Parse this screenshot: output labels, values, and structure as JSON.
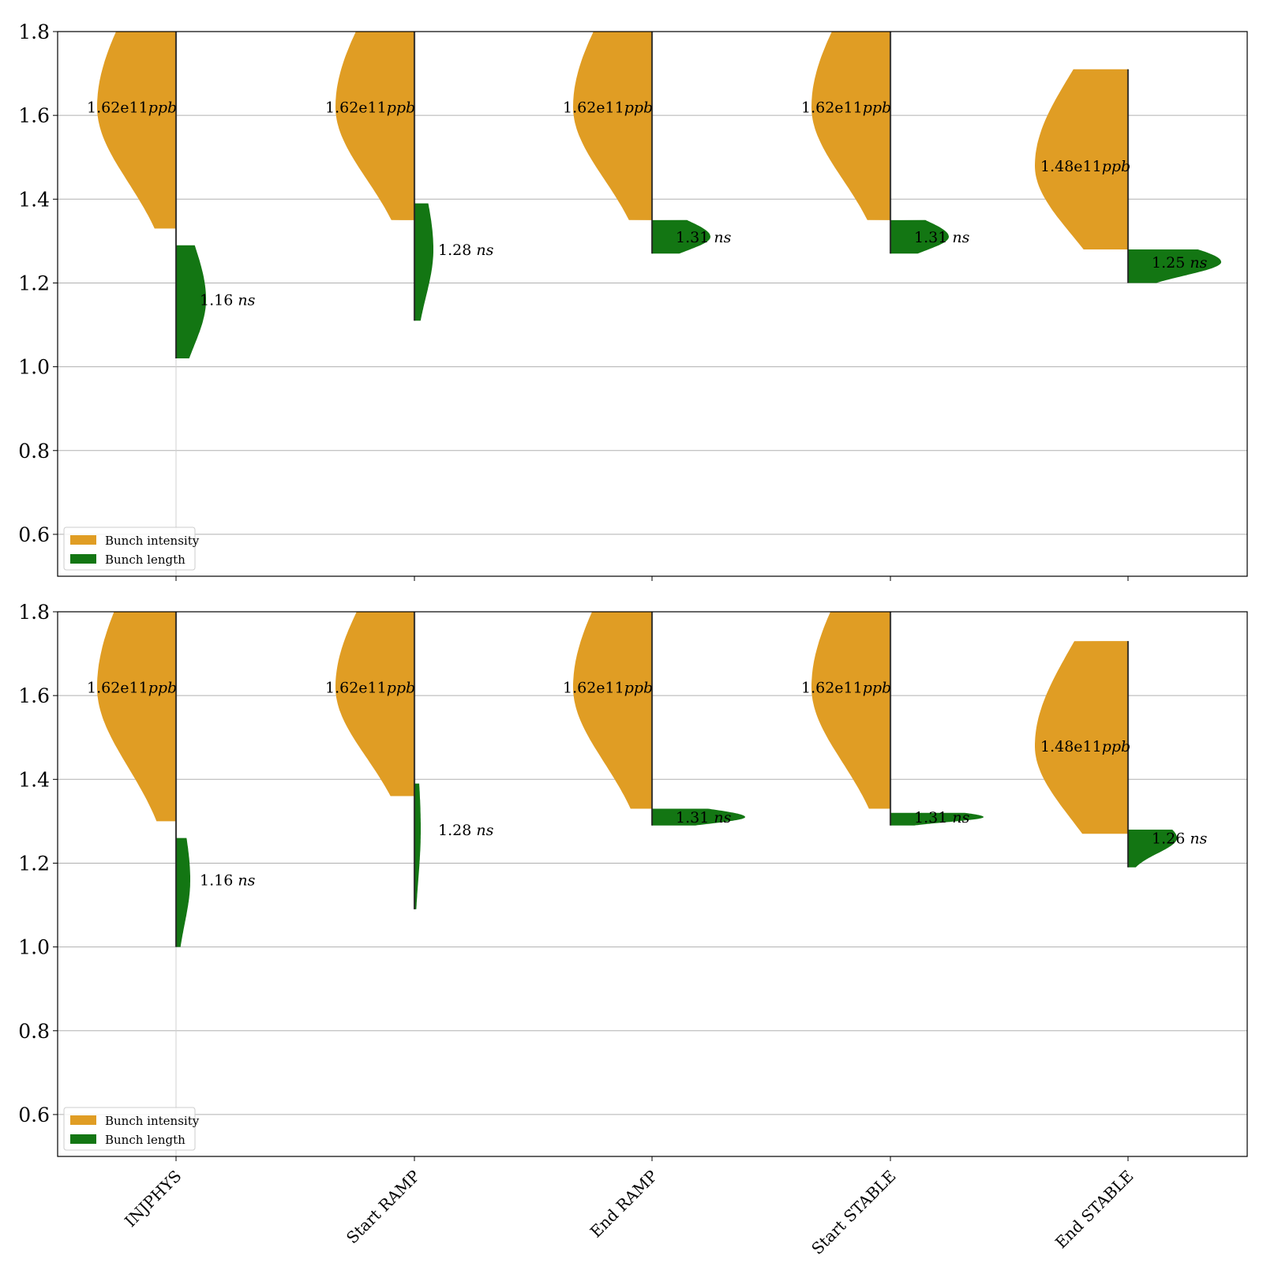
{
  "colors": {
    "intensity": "#E09D24",
    "length": "#137613",
    "grid": "#B0B0B0",
    "axis": "#000000"
  },
  "chart_data": [
    {
      "type": "violin",
      "panel": "top",
      "title": "",
      "xlabel": "",
      "ylabel": "",
      "categories": [
        "INJPHYS",
        "Start RAMP",
        "End RAMP",
        "Start STABLE",
        "End STABLE"
      ],
      "show_x_tick_labels": false,
      "ylim": [
        0.5,
        1.8
      ],
      "yticks": [
        "0.6",
        "0.8",
        "1.0",
        "1.2",
        "1.4",
        "1.6",
        "1.8"
      ],
      "grid": "horizontal",
      "legend": {
        "placement": "lower-left",
        "entries": [
          "Bunch intensity",
          "Bunch length"
        ]
      },
      "series": [
        {
          "name": "Bunch intensity",
          "side": "left",
          "values": [
            1.62,
            1.62,
            1.62,
            1.62,
            1.48
          ],
          "labels": [
            [
              "1.62e11",
              "ppb"
            ],
            [
              "1.62e11",
              "ppb"
            ],
            [
              "1.62e11",
              "ppb"
            ],
            [
              "1.62e11",
              "ppb"
            ],
            [
              "1.48e11",
              "ppb"
            ]
          ],
          "y_min": [
            1.33,
            1.35,
            1.35,
            1.35,
            1.28
          ],
          "y_max": [
            1.8,
            1.8,
            1.8,
            1.8,
            1.71
          ]
        },
        {
          "name": "Bunch length",
          "side": "right",
          "values": [
            1.16,
            1.28,
            1.31,
            1.31,
            1.25
          ],
          "labels": [
            [
              "1.16",
              "ns"
            ],
            [
              "1.28",
              "ns"
            ],
            [
              "1.31",
              "ns"
            ],
            [
              "1.31",
              "ns"
            ],
            [
              "1.25",
              "ns"
            ]
          ],
          "y_min": [
            1.02,
            1.11,
            1.27,
            1.27,
            1.2
          ],
          "y_max": [
            1.29,
            1.39,
            1.35,
            1.35,
            1.28
          ]
        }
      ]
    },
    {
      "type": "violin",
      "panel": "bottom",
      "title": "",
      "xlabel": "",
      "ylabel": "",
      "categories": [
        "INJPHYS",
        "Start RAMP",
        "End RAMP",
        "Start STABLE",
        "End STABLE"
      ],
      "show_x_tick_labels": true,
      "ylim": [
        0.5,
        1.8
      ],
      "yticks": [
        "0.6",
        "0.8",
        "1.0",
        "1.2",
        "1.4",
        "1.6",
        "1.8"
      ],
      "grid": "horizontal",
      "legend": {
        "placement": "lower-left",
        "entries": [
          "Bunch intensity",
          "Bunch length"
        ]
      },
      "series": [
        {
          "name": "Bunch intensity",
          "side": "left",
          "values": [
            1.62,
            1.62,
            1.62,
            1.62,
            1.48
          ],
          "labels": [
            [
              "1.62e11",
              "ppb"
            ],
            [
              "1.62e11",
              "ppb"
            ],
            [
              "1.62e11",
              "ppb"
            ],
            [
              "1.62e11",
              "ppb"
            ],
            [
              "1.48e11",
              "ppb"
            ]
          ],
          "y_min": [
            1.3,
            1.36,
            1.33,
            1.33,
            1.27
          ],
          "y_max": [
            1.8,
            1.8,
            1.8,
            1.8,
            1.73
          ]
        },
        {
          "name": "Bunch length",
          "side": "right",
          "values": [
            1.16,
            1.28,
            1.31,
            1.31,
            1.26
          ],
          "labels": [
            [
              "1.16",
              "ns"
            ],
            [
              "1.28",
              "ns"
            ],
            [
              "1.31",
              "ns"
            ],
            [
              "1.31",
              "ns"
            ],
            [
              "1.26",
              "ns"
            ]
          ],
          "y_min": [
            1.0,
            1.09,
            1.29,
            1.29,
            1.19
          ],
          "y_max": [
            1.26,
            1.39,
            1.33,
            1.32,
            1.28
          ]
        }
      ]
    }
  ]
}
